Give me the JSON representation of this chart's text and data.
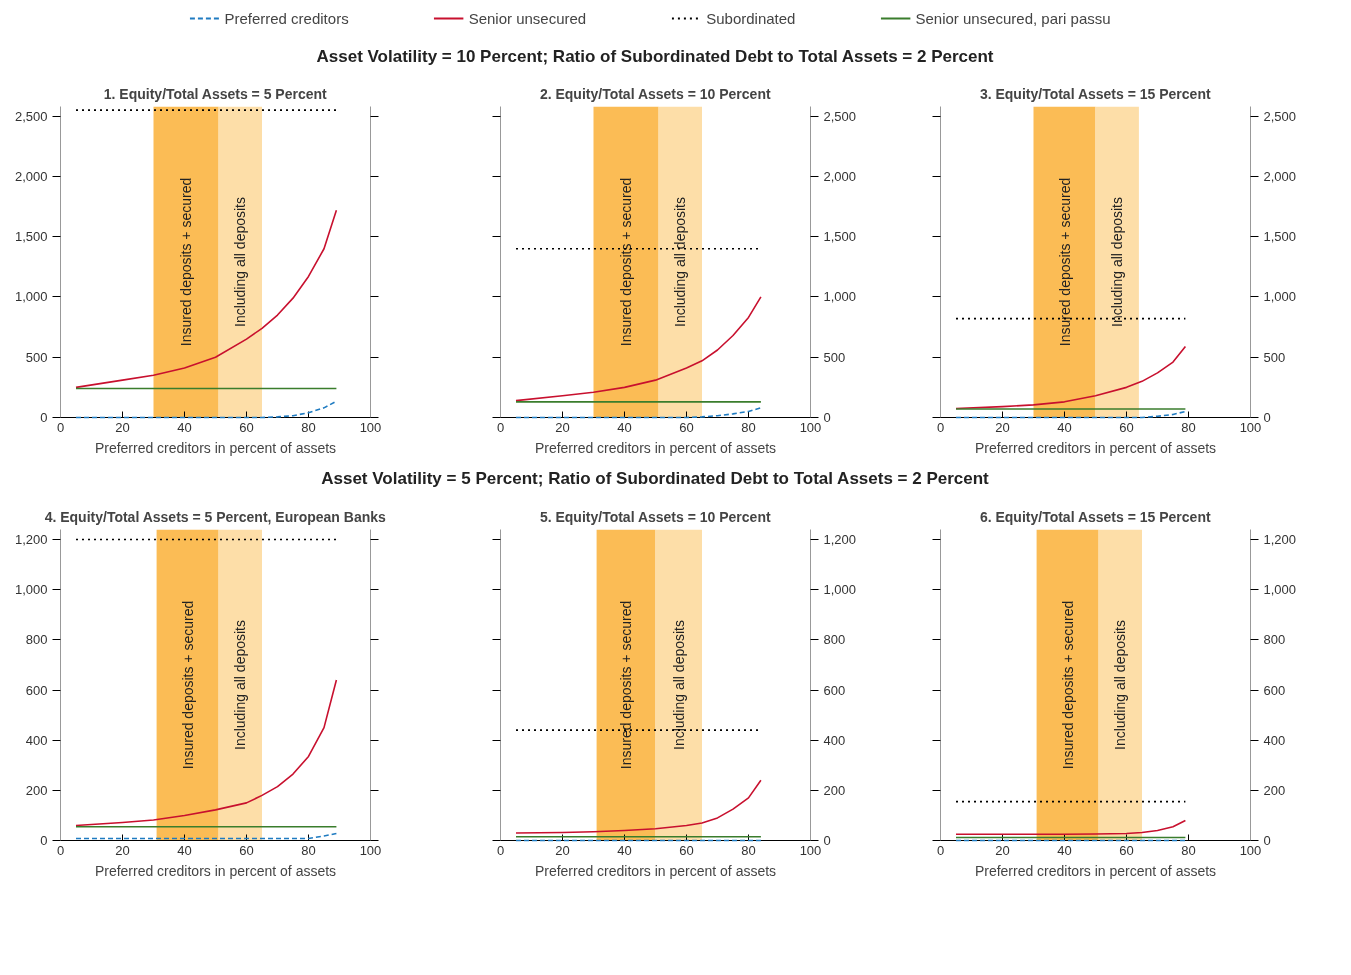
{
  "chart_data": [
    {
      "type": "line",
      "title": "1. Equity/Total Assets = 5 Percent",
      "xlabel": "Preferred creditors in percent of assets",
      "annotations": [
        "Asset Volatility = 10 Percent; Ratio of Subordinated Debt to Total Assets = 2 Percent"
      ],
      "legend": "top",
      "x": [
        5,
        20,
        30,
        40,
        50,
        60,
        65,
        70,
        75,
        80,
        85,
        89
      ],
      "xlim": [
        0,
        100
      ],
      "xticks": [
        0,
        20,
        40,
        60,
        80,
        100
      ],
      "ylim": [
        0,
        2580
      ],
      "yticks": [
        0,
        500,
        {
          "value": 1000,
          "label": "1,000"
        },
        {
          "value": 1500,
          "label": "1,500"
        },
        {
          "value": 2000,
          "label": "2,000"
        },
        {
          "value": 2500,
          "label": "2,500"
        }
      ],
      "series": [
        {
          "name": "Preferred creditors",
          "color": "#1f7bc1",
          "line_style": "dashed",
          "values": [
            0,
            0,
            0,
            0,
            0,
            0,
            0,
            5,
            15,
            40,
            80,
            135
          ]
        },
        {
          "name": "Senior unsecured",
          "color": "#c8102e",
          "line_style": "solid",
          "values": [
            250,
            310,
            350,
            410,
            500,
            650,
            740,
            850,
            990,
            1170,
            1400,
            1720
          ]
        },
        {
          "name": "Subordinated",
          "color": "#000000",
          "line_style": "dotted",
          "values": [
            2550,
            2550,
            2550,
            2550,
            2550,
            2550,
            2550,
            2550,
            2550,
            2550,
            2550,
            2550
          ]
        },
        {
          "name": "Senior unsecured, pari passu",
          "color": "#3a7d2c",
          "line_style": "solid",
          "values": [
            240,
            240,
            240,
            240,
            240,
            240,
            240,
            240,
            240,
            240,
            240,
            240
          ]
        }
      ],
      "bands": [
        {
          "axis": "x",
          "from": 30,
          "to": 51,
          "label": "Insured deposits + secured",
          "color": "#fbbc55"
        },
        {
          "axis": "x",
          "from": 51,
          "to": 65,
          "label": "Including all deposits",
          "color": "#fddea8"
        }
      ]
    },
    {
      "type": "line",
      "title": "2. Equity/Total Assets = 10 Percent",
      "xlabel": "Preferred creditors in percent of assets",
      "x": [
        5,
        20,
        30,
        40,
        50,
        60,
        65,
        70,
        75,
        80,
        84
      ],
      "xlim": [
        0,
        100
      ],
      "xticks": [
        0,
        20,
        40,
        60,
        80,
        100
      ],
      "y2lim": [
        0,
        2580
      ],
      "y2ticks": [
        0,
        500,
        {
          "value": 1000,
          "label": "1,000"
        },
        {
          "value": 1500,
          "label": "1,500"
        },
        {
          "value": 2000,
          "label": "2,000"
        },
        {
          "value": 2500,
          "label": "2,500"
        }
      ],
      "series": [
        {
          "axis": "y2",
          "color": "#1f7bc1",
          "line_style": "dashed",
          "values": [
            0,
            0,
            0,
            0,
            0,
            0,
            5,
            15,
            30,
            50,
            80
          ]
        },
        {
          "axis": "y2",
          "color": "#c8102e",
          "line_style": "solid",
          "values": [
            140,
            180,
            210,
            250,
            310,
            410,
            470,
            560,
            680,
            830,
            1000
          ]
        },
        {
          "axis": "y2",
          "color": "#000000",
          "line_style": "dotted",
          "values": [
            1400,
            1400,
            1400,
            1400,
            1400,
            1400,
            1400,
            1400,
            1400,
            1400,
            1400
          ]
        },
        {
          "axis": "y2",
          "color": "#3a7d2c",
          "line_style": "solid",
          "values": [
            130,
            130,
            130,
            130,
            130,
            130,
            130,
            130,
            130,
            130,
            130
          ]
        }
      ],
      "bands": [
        {
          "axis": "x",
          "from": 30,
          "to": 51,
          "label": "Insured deposits + secured",
          "color": "#fbbc55"
        },
        {
          "axis": "x",
          "from": 51,
          "to": 65,
          "label": "Including all deposits",
          "color": "#fddea8"
        }
      ]
    },
    {
      "type": "line",
      "title": "3. Equity/Total Assets = 15 Percent",
      "xlabel": "Preferred creditors in percent of assets",
      "x": [
        5,
        20,
        30,
        40,
        50,
        60,
        65,
        70,
        75,
        79
      ],
      "xlim": [
        0,
        100
      ],
      "xticks": [
        0,
        20,
        40,
        60,
        80,
        100
      ],
      "y2lim": [
        0,
        2580
      ],
      "y2ticks": [
        0,
        500,
        {
          "value": 1000,
          "label": "1,000"
        },
        {
          "value": 1500,
          "label": "1,500"
        },
        {
          "value": 2000,
          "label": "2,000"
        },
        {
          "value": 2500,
          "label": "2,500"
        }
      ],
      "series": [
        {
          "axis": "y2",
          "color": "#1f7bc1",
          "line_style": "dashed",
          "values": [
            0,
            0,
            0,
            0,
            0,
            0,
            0,
            10,
            25,
            50
          ]
        },
        {
          "axis": "y2",
          "color": "#c8102e",
          "line_style": "solid",
          "values": [
            75,
            90,
            105,
            130,
            180,
            250,
            300,
            370,
            460,
            590
          ]
        },
        {
          "axis": "y2",
          "color": "#000000",
          "line_style": "dotted",
          "values": [
            820,
            820,
            820,
            820,
            820,
            820,
            820,
            820,
            820,
            820
          ]
        },
        {
          "axis": "y2",
          "color": "#3a7d2c",
          "line_style": "solid",
          "values": [
            70,
            70,
            70,
            70,
            70,
            70,
            70,
            70,
            70,
            70
          ]
        }
      ],
      "bands": [
        {
          "axis": "x",
          "from": 30,
          "to": 50,
          "label": "Insured deposits + secured",
          "color": "#fbbc55"
        },
        {
          "axis": "x",
          "from": 50,
          "to": 64,
          "label": "Including all deposits",
          "color": "#fddea8"
        }
      ]
    },
    {
      "type": "line",
      "title": "4. Equity/Total Assets = 5 Percent, European Banks",
      "xlabel": "Preferred creditors in percent of assets",
      "annotations": [
        "Asset Volatility = 5 Percent; Ratio of Subordinated Debt to Total Assets = 2 Percent"
      ],
      "x": [
        5,
        20,
        30,
        40,
        50,
        60,
        65,
        70,
        75,
        80,
        85,
        89
      ],
      "xlim": [
        0,
        100
      ],
      "xticks": [
        0,
        20,
        40,
        60,
        80,
        100
      ],
      "ylim": [
        0,
        1240
      ],
      "yticks": [
        0,
        200,
        400,
        600,
        800,
        {
          "value": 1000,
          "label": "1,000"
        },
        {
          "value": 1200,
          "label": "1,200"
        }
      ],
      "series": [
        {
          "color": "#1f7bc1",
          "line_style": "dashed",
          "values": [
            8,
            8,
            8,
            8,
            8,
            8,
            8,
            8,
            8,
            8,
            18,
            28
          ]
        },
        {
          "color": "#c8102e",
          "line_style": "solid",
          "values": [
            60,
            72,
            82,
            100,
            122,
            150,
            180,
            215,
            265,
            335,
            450,
            640
          ]
        },
        {
          "color": "#000000",
          "line_style": "dotted",
          "values": [
            1200,
            1200,
            1200,
            1200,
            1200,
            1200,
            1200,
            1200,
            1200,
            1200,
            1200,
            1200
          ]
        },
        {
          "color": "#3a7d2c",
          "line_style": "solid",
          "values": [
            55,
            55,
            55,
            55,
            55,
            55,
            55,
            55,
            55,
            55,
            55,
            55
          ]
        }
      ],
      "bands": [
        {
          "axis": "x",
          "from": 31,
          "to": 51,
          "label": "Insured deposits + secured",
          "color": "#fbbc55"
        },
        {
          "axis": "x",
          "from": 51,
          "to": 65,
          "label": "Including all deposits",
          "color": "#fddea8"
        }
      ]
    },
    {
      "type": "line",
      "title": "5. Equity/Total Assets = 10 Percent",
      "xlabel": "Preferred creditors in percent of assets",
      "x": [
        5,
        20,
        30,
        40,
        50,
        60,
        65,
        70,
        75,
        80,
        84
      ],
      "xlim": [
        0,
        100
      ],
      "xticks": [
        0,
        20,
        40,
        60,
        80,
        100
      ],
      "y2lim": [
        0,
        1240
      ],
      "y2ticks": [
        0,
        200,
        400,
        600,
        800,
        {
          "value": 1000,
          "label": "1,000"
        },
        {
          "value": 1200,
          "label": "1,200"
        }
      ],
      "series": [
        {
          "axis": "y2",
          "color": "#1f7bc1",
          "line_style": "dashed",
          "values": [
            0,
            0,
            0,
            0,
            0,
            0,
            0,
            0,
            0,
            0,
            0
          ]
        },
        {
          "axis": "y2",
          "color": "#c8102e",
          "line_style": "solid",
          "values": [
            30,
            32,
            35,
            40,
            47,
            60,
            70,
            90,
            125,
            170,
            240
          ]
        },
        {
          "axis": "y2",
          "color": "#000000",
          "line_style": "dotted",
          "values": [
            440,
            440,
            440,
            440,
            440,
            440,
            440,
            440,
            440,
            440,
            440
          ]
        },
        {
          "axis": "y2",
          "color": "#3a7d2c",
          "line_style": "solid",
          "values": [
            15,
            15,
            15,
            15,
            15,
            15,
            15,
            15,
            15,
            15,
            15
          ]
        }
      ],
      "bands": [
        {
          "axis": "x",
          "from": 31,
          "to": 50,
          "label": "Insured deposits + secured",
          "color": "#fbbc55"
        },
        {
          "axis": "x",
          "from": 50,
          "to": 65,
          "label": "Including all deposits",
          "color": "#fddea8"
        }
      ]
    },
    {
      "type": "line",
      "title": "6. Equity/Total Assets = 15 Percent",
      "xlabel": "Preferred creditors in percent of assets",
      "x": [
        5,
        20,
        30,
        40,
        50,
        60,
        65,
        70,
        75,
        79
      ],
      "xlim": [
        0,
        100
      ],
      "xticks": [
        0,
        20,
        40,
        60,
        80,
        100
      ],
      "y2lim": [
        0,
        1240
      ],
      "y2ticks": [
        0,
        200,
        400,
        600,
        800,
        {
          "value": 1000,
          "label": "1,000"
        },
        {
          "value": 1200,
          "label": "1,200"
        }
      ],
      "series": [
        {
          "axis": "y2",
          "color": "#1f7bc1",
          "line_style": "dashed",
          "values": [
            0,
            0,
            0,
            0,
            0,
            0,
            0,
            0,
            0,
            0
          ]
        },
        {
          "axis": "y2",
          "color": "#c8102e",
          "line_style": "solid",
          "values": [
            25,
            25,
            25,
            25,
            26,
            28,
            32,
            40,
            55,
            80
          ]
        },
        {
          "axis": "y2",
          "color": "#000000",
          "line_style": "dotted",
          "values": [
            155,
            155,
            155,
            155,
            155,
            155,
            155,
            155,
            155,
            155
          ]
        },
        {
          "axis": "y2",
          "color": "#3a7d2c",
          "line_style": "solid",
          "values": [
            12,
            12,
            12,
            12,
            12,
            12,
            12,
            12,
            12,
            12
          ]
        }
      ],
      "bands": [
        {
          "axis": "x",
          "from": 31,
          "to": 51,
          "label": "Insured deposits + secured",
          "color": "#fbbc55"
        },
        {
          "axis": "x",
          "from": 51,
          "to": 65,
          "label": "Including all deposits",
          "color": "#fddea8"
        }
      ]
    }
  ]
}
